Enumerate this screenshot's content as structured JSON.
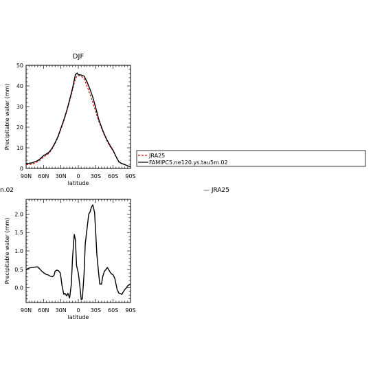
{
  "fragments": {
    "left": "n.02",
    "right": "—  JRA25"
  },
  "legend": {
    "entries": [
      {
        "label": "JRA25",
        "color": "#cc0000",
        "dash": true
      },
      {
        "label": "FAMIPC5.ne120.ys.tau5m.02",
        "color": "#000000",
        "dash": false
      }
    ]
  },
  "chart_data": [
    {
      "type": "line",
      "title": "DJF",
      "xlabel": "latitude",
      "ylabel": "Precipitable water (mm)",
      "xlim": [
        -90,
        90
      ],
      "ylim": [
        0,
        50
      ],
      "xticks": [
        -90,
        -60,
        -30,
        0,
        30,
        60,
        90
      ],
      "xtick_labels": [
        "90N",
        "60N",
        "30N",
        "0",
        "30S",
        "60S",
        "90S"
      ],
      "yticks": [
        0,
        10,
        20,
        30,
        40,
        50
      ],
      "ytick_labels": [
        "0",
        "10",
        "20",
        "30",
        "40",
        "50"
      ],
      "series": [
        {
          "name": "JRA25",
          "color": "#cc0000",
          "dash": true,
          "x": [
            -90,
            -85,
            -80,
            -75,
            -70,
            -65,
            -60,
            -55,
            -50,
            -45,
            -40,
            -35,
            -30,
            -25,
            -20,
            -15,
            -10,
            -5,
            -2,
            0,
            5,
            10,
            15,
            20,
            25,
            30,
            35,
            40,
            45,
            50,
            55,
            60,
            65,
            70,
            75,
            80,
            85,
            90
          ],
          "y": [
            1.8,
            1.9,
            2.1,
            2.6,
            3.2,
            4.2,
            5.5,
            6.4,
            7.5,
            9.5,
            12.0,
            15.0,
            19.0,
            23.0,
            27.5,
            32.5,
            38.0,
            43.5,
            44.8,
            45.0,
            44.8,
            43.5,
            40.0,
            36.0,
            32.0,
            27.5,
            23.0,
            19.5,
            16.0,
            13.0,
            10.5,
            8.5,
            5.5,
            3.0,
            2.2,
            1.8,
            1.2,
            0.6
          ]
        },
        {
          "name": "FAMIPC5.ne120.ys.tau5m.02",
          "color": "#000000",
          "dash": false,
          "x": [
            -90,
            -85,
            -80,
            -75,
            -70,
            -65,
            -60,
            -55,
            -50,
            -45,
            -40,
            -35,
            -30,
            -25,
            -20,
            -15,
            -10,
            -5,
            -2,
            0,
            5,
            10,
            15,
            20,
            25,
            30,
            35,
            40,
            45,
            50,
            55,
            60,
            65,
            70,
            75,
            80,
            85,
            90
          ],
          "y": [
            2.4,
            2.5,
            2.7,
            3.2,
            3.8,
            4.9,
            6.2,
            7.0,
            8.0,
            9.9,
            12.5,
            15.5,
            19.5,
            23.5,
            28.0,
            33.2,
            38.8,
            45.5,
            46.3,
            45.5,
            45.3,
            44.8,
            42.0,
            38.5,
            34.5,
            29.5,
            24.0,
            20.0,
            16.5,
            13.5,
            11.0,
            8.8,
            5.8,
            3.2,
            2.4,
            1.9,
            1.3,
            0.7
          ]
        }
      ]
    },
    {
      "type": "line",
      "title": "",
      "xlabel": "latitude",
      "ylabel": "Precipitable water (mm)",
      "xlim": [
        -90,
        90
      ],
      "ylim": [
        -0.4,
        2.4
      ],
      "xticks": [
        -90,
        -60,
        -30,
        0,
        30,
        60,
        90
      ],
      "xtick_labels": [
        "90N",
        "60N",
        "30N",
        "0",
        "30S",
        "60S",
        "90S"
      ],
      "yticks": [
        0.0,
        0.5,
        1.0,
        1.5,
        2.0
      ],
      "ytick_labels": [
        "0.0",
        "0.5",
        "1.0",
        "1.5",
        "2.0"
      ],
      "series": [
        {
          "name": "",
          "color": "#000000",
          "dash": false,
          "x": [
            -90,
            -87,
            -84,
            -80,
            -75,
            -70,
            -67,
            -63,
            -59,
            -55,
            -52,
            -49,
            -45,
            -42,
            -40,
            -37,
            -34,
            -31,
            -28,
            -25,
            -23,
            -20,
            -18,
            -15,
            -12,
            -10,
            -7,
            -5,
            -3,
            0,
            2,
            5,
            7,
            10,
            12,
            15,
            18,
            20,
            23,
            25,
            28,
            30,
            32,
            35,
            37,
            40,
            42,
            45,
            48,
            50,
            52,
            55,
            57,
            60,
            63,
            65,
            67,
            70,
            73,
            75,
            78,
            80,
            83,
            85,
            88,
            90
          ],
          "y": [
            0.48,
            0.52,
            0.54,
            0.55,
            0.56,
            0.57,
            0.52,
            0.45,
            0.4,
            0.36,
            0.35,
            0.32,
            0.3,
            0.33,
            0.45,
            0.48,
            0.46,
            0.4,
            0.05,
            -0.18,
            -0.15,
            -0.22,
            -0.15,
            -0.28,
            0.1,
            0.8,
            1.45,
            1.3,
            0.6,
            0.4,
            0.15,
            -0.32,
            -0.3,
            0.4,
            1.2,
            1.6,
            2.0,
            2.05,
            2.2,
            2.25,
            2.05,
            1.5,
            0.9,
            0.4,
            0.1,
            0.1,
            0.3,
            0.45,
            0.5,
            0.55,
            0.5,
            0.42,
            0.38,
            0.35,
            0.25,
            0.1,
            -0.05,
            -0.15,
            -0.16,
            -0.18,
            -0.1,
            -0.05,
            0.0,
            0.05,
            0.08,
            0.1
          ]
        }
      ]
    }
  ]
}
